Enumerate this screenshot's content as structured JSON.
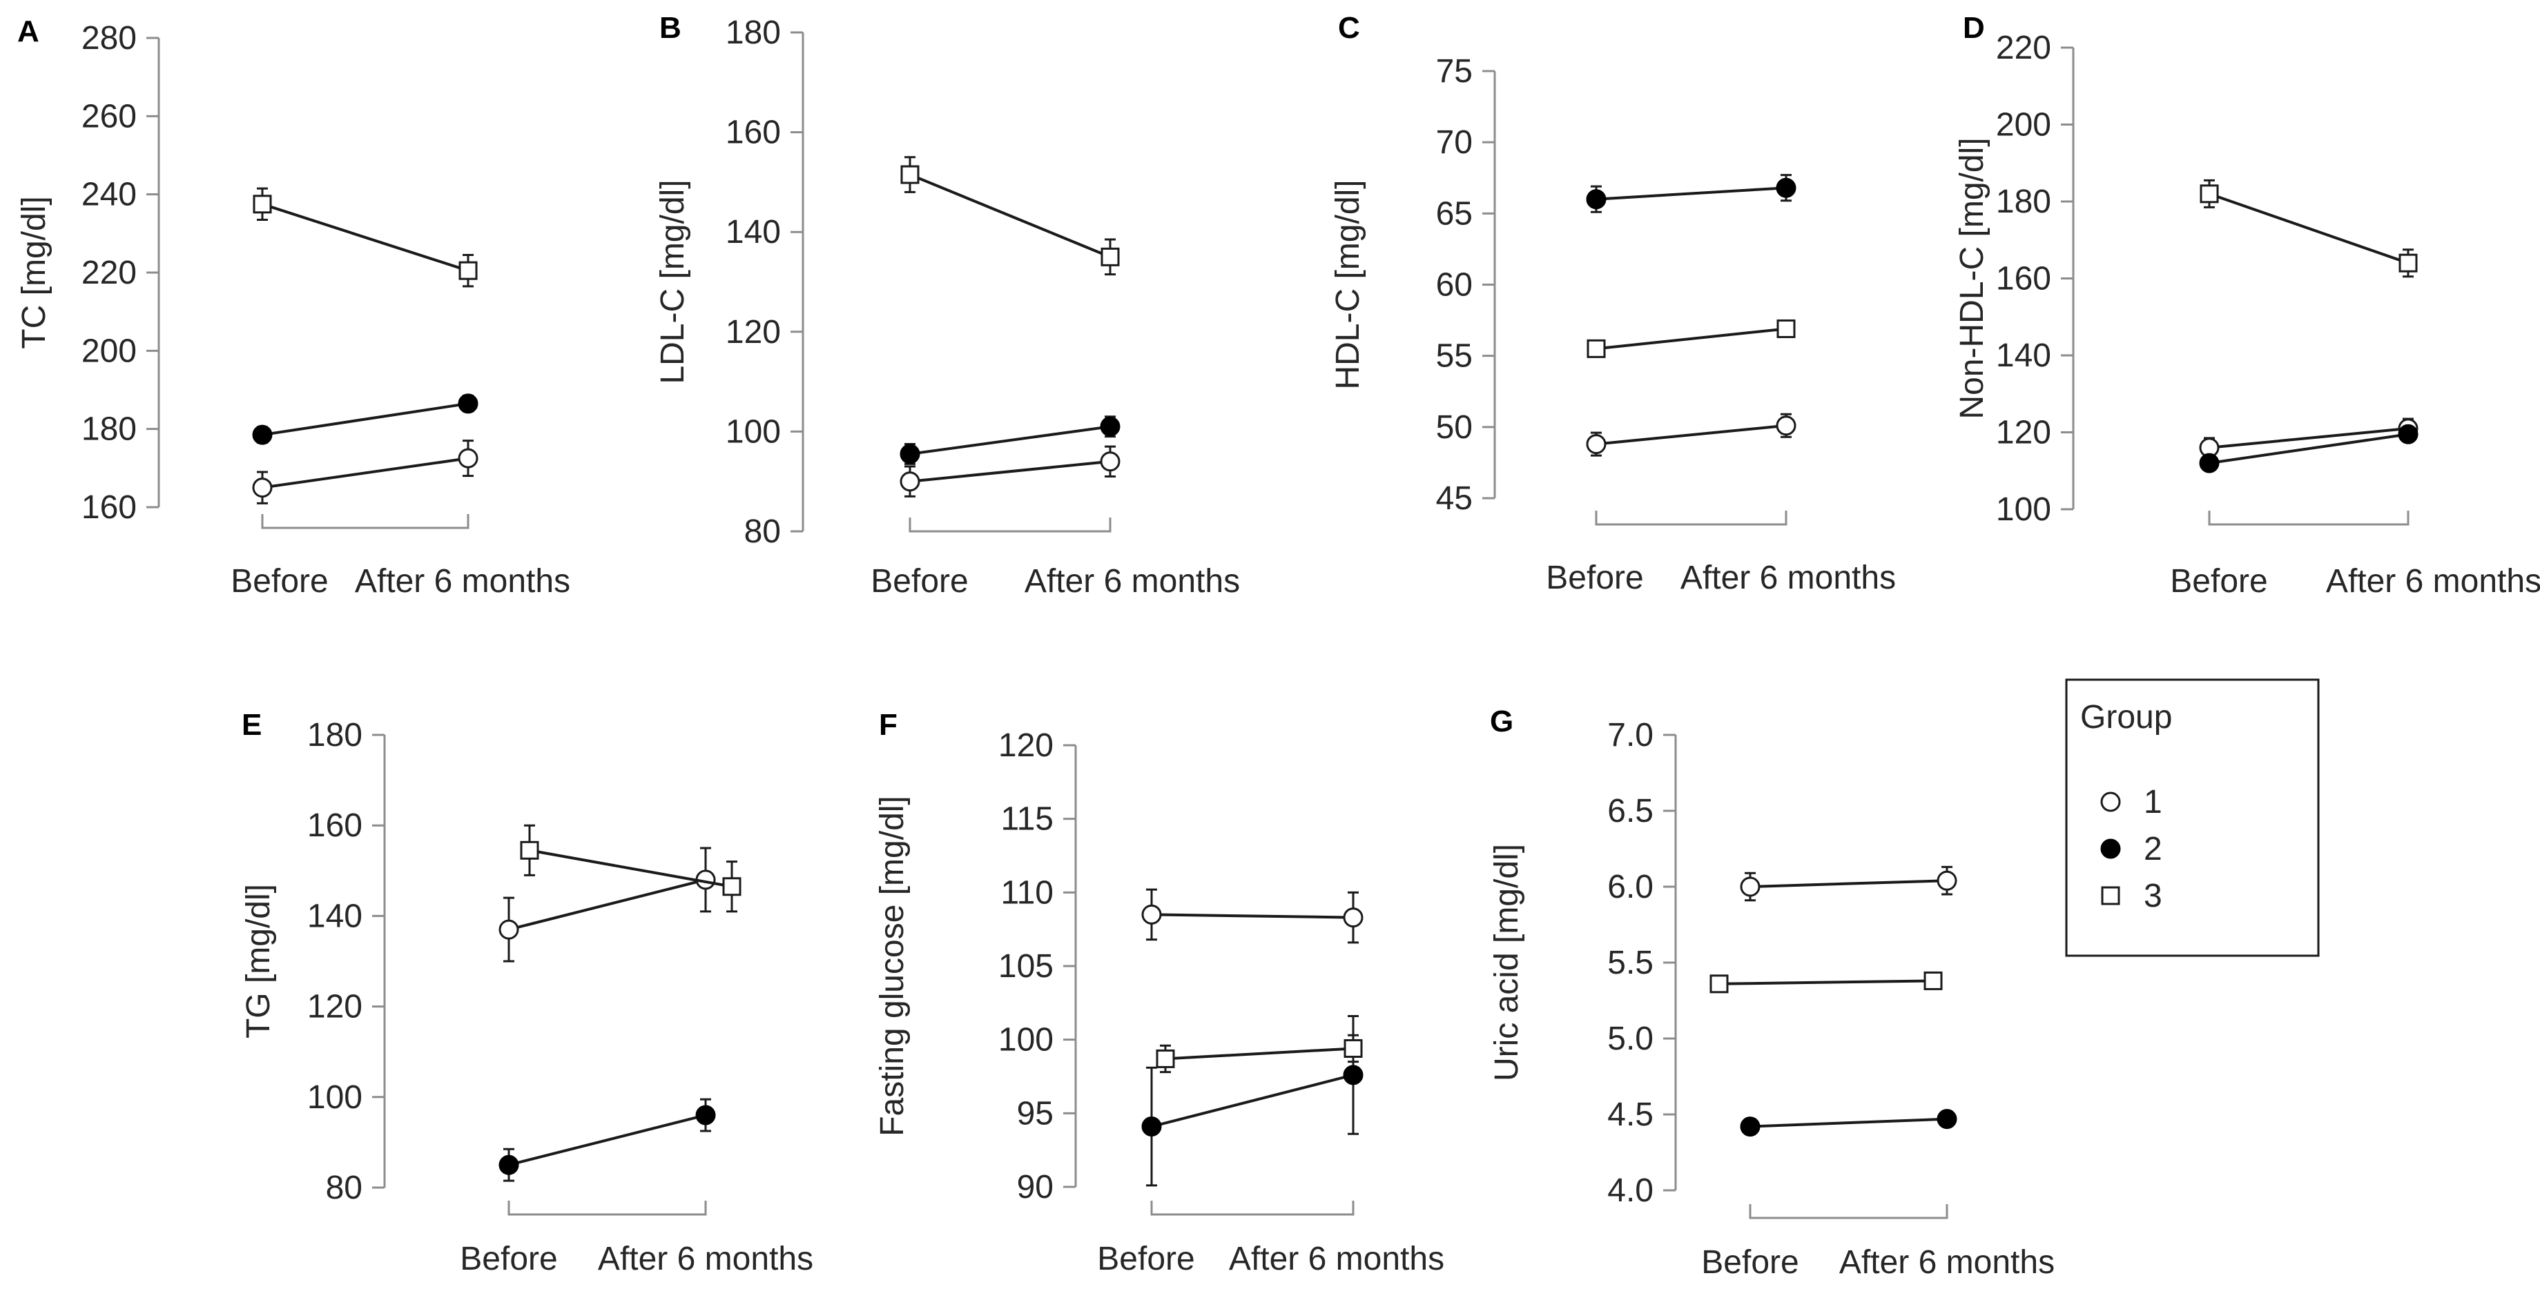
{
  "chart_data": [
    {
      "type": "line",
      "panel": "A",
      "ylabel": "TC [mg/dl]",
      "categories": [
        "Before",
        "After 6 months"
      ],
      "ylim": [
        160,
        280
      ],
      "yticks": [
        "160",
        "180",
        "200",
        "220",
        "240",
        "260",
        "280"
      ],
      "series": [
        {
          "name": "1",
          "values": [
            165,
            172.5
          ],
          "errors": [
            4,
            4.5
          ]
        },
        {
          "name": "2",
          "values": [
            178.5,
            186.5
          ],
          "errors": [
            2,
            2
          ]
        },
        {
          "name": "3",
          "values": [
            237.5,
            220.5
          ],
          "errors": [
            4,
            4
          ]
        }
      ]
    },
    {
      "type": "line",
      "panel": "B",
      "ylabel": "LDL-C [mg/dl]",
      "categories": [
        "Before",
        "After 6 months"
      ],
      "ylim": [
        80,
        180
      ],
      "yticks": [
        "80",
        "100",
        "120",
        "140",
        "160",
        "180"
      ],
      "series": [
        {
          "name": "1",
          "values": [
            90,
            94
          ],
          "errors": [
            3,
            3
          ]
        },
        {
          "name": "2",
          "values": [
            95.5,
            101
          ],
          "errors": [
            2,
            2
          ]
        },
        {
          "name": "3",
          "values": [
            151.5,
            135
          ],
          "errors": [
            3.5,
            3.5
          ]
        }
      ]
    },
    {
      "type": "line",
      "panel": "C",
      "ylabel": "HDL-C [mg/dl]",
      "categories": [
        "Before",
        "After 6 months"
      ],
      "ylim": [
        45,
        75
      ],
      "yticks": [
        "45",
        "50",
        "55",
        "60",
        "65",
        "70",
        "75"
      ],
      "series": [
        {
          "name": "1",
          "values": [
            48.8,
            50.1
          ],
          "errors": [
            0.8,
            0.8
          ]
        },
        {
          "name": "2",
          "values": [
            66,
            66.8
          ],
          "errors": [
            0.9,
            0.9
          ]
        },
        {
          "name": "3",
          "values": [
            55.5,
            56.9
          ],
          "errors": [
            0.5,
            0.5
          ]
        }
      ]
    },
    {
      "type": "line",
      "panel": "D",
      "ylabel": "Non-HDL-C [mg/dl]",
      "categories": [
        "Before",
        "After 6 months"
      ],
      "ylim": [
        100,
        220
      ],
      "yticks": [
        "100",
        "120",
        "140",
        "160",
        "180",
        "200",
        "220"
      ],
      "series": [
        {
          "name": "1",
          "values": [
            116,
            121
          ],
          "errors": [
            2.5,
            2.5
          ]
        },
        {
          "name": "2",
          "values": [
            112,
            119.5
          ],
          "errors": [
            1.5,
            1.5
          ]
        },
        {
          "name": "3",
          "values": [
            182,
            164
          ],
          "errors": [
            3.5,
            3.5
          ]
        }
      ]
    },
    {
      "type": "line",
      "panel": "E",
      "ylabel": "TG [mg/dl]",
      "categories": [
        "Before",
        "After 6 months"
      ],
      "ylim": [
        80,
        180
      ],
      "yticks": [
        "80",
        "100",
        "120",
        "140",
        "160",
        "180"
      ],
      "series": [
        {
          "name": "1",
          "values": [
            137,
            148
          ],
          "errors": [
            7,
            7
          ]
        },
        {
          "name": "2",
          "values": [
            85,
            96
          ],
          "errors": [
            3.5,
            3.5
          ]
        },
        {
          "name": "3",
          "values": [
            154.5,
            146.5
          ],
          "errors": [
            5.5,
            5.5
          ]
        }
      ]
    },
    {
      "type": "line",
      "panel": "F",
      "ylabel": "Fasting glucose [mg/dl]",
      "categories": [
        "Before",
        "After 6 months"
      ],
      "ylim": [
        90,
        120
      ],
      "yticks": [
        "90",
        "95",
        "100",
        "105",
        "110",
        "115",
        "120"
      ],
      "series": [
        {
          "name": "1",
          "values": [
            108.5,
            108.3
          ],
          "errors": [
            1.7,
            1.7
          ]
        },
        {
          "name": "2",
          "values": [
            94.1,
            97.6
          ],
          "errors": [
            4,
            4
          ]
        },
        {
          "name": "3",
          "values": [
            98.7,
            99.4
          ],
          "errors": [
            0.9,
            0.9
          ]
        }
      ]
    },
    {
      "type": "line",
      "panel": "G",
      "ylabel": "Uric acid [mg/dl]",
      "categories": [
        "Before",
        "After 6 months"
      ],
      "ylim": [
        4.0,
        7.0
      ],
      "yticks": [
        "4.0",
        "4.5",
        "5.0",
        "5.5",
        "6.0",
        "6.5",
        "7.0"
      ],
      "series": [
        {
          "name": "1",
          "values": [
            6.0,
            6.04
          ],
          "errors": [
            0.09,
            0.09
          ]
        },
        {
          "name": "2",
          "values": [
            4.42,
            4.47
          ],
          "errors": [
            0.05,
            0.05
          ]
        },
        {
          "name": "3",
          "values": [
            5.36,
            5.38
          ],
          "errors": [
            0.05,
            0.05
          ]
        }
      ]
    }
  ],
  "legend": {
    "title": "Group",
    "entries": [
      {
        "label": "1",
        "marker": "open-circle"
      },
      {
        "label": "2",
        "marker": "filled-circle"
      },
      {
        "label": "3",
        "marker": "open-square"
      }
    ]
  }
}
